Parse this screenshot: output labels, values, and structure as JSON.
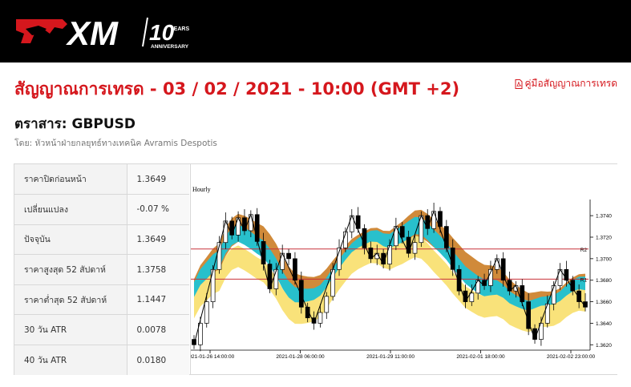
{
  "header": {
    "logo_text": "XM",
    "anniversary_number": "10",
    "anniversary_years": "YEARS",
    "anniversary_label": "ANNIVERSARY"
  },
  "page": {
    "title": "สัญญาณการเทรด - 03 / 02 / 2021 - 10:00 (GMT +2)",
    "guide_link": "คู่มือสัญญาณการเทรด",
    "instrument": "ตราสาร: GBPUSD",
    "author": "โดย: หัวหน้าฝ่ายกลยุทธ์ทางเทคนิค Avramis Despotis"
  },
  "stats": [
    {
      "label": "ราคาปิดก่อนหน้า",
      "value": "1.3649"
    },
    {
      "label": "เปลี่ยนแปลง",
      "value": "-0.07 %"
    },
    {
      "label": "ปัจจุบัน",
      "value": "1.3649"
    },
    {
      "label": "ราคาสูงสุด 52 สัปดาห์",
      "value": "1.3758"
    },
    {
      "label": "ราคาต่ำสุด 52 สัปดาห์",
      "value": "1.1447"
    },
    {
      "label": "30 วัน ATR",
      "value": "0.0078"
    },
    {
      "label": "40 วัน ATR",
      "value": "0.0180"
    }
  ],
  "colors": {
    "brand_red": "#d5171d",
    "band_brown": "#d08a3a",
    "band_cyan": "#28c0cc",
    "band_yellow": "#f9e27a",
    "level_line": "#c8323a"
  },
  "chart_data": {
    "type": "candlestick",
    "timeframe_label": "Hourly",
    "x_tick_labels": [
      "2021-01-26 14:00:00",
      "2021-01-28 06:00:00",
      "2021-01-29 11:00:00",
      "2021-02-01 18:00:00",
      "2021-02-02 23:00:00"
    ],
    "y_tick_labels": [
      "1.3740",
      "1.3720",
      "1.3700",
      "1.3680",
      "1.3660",
      "1.3640",
      "1.3620"
    ],
    "ylim": [
      1.3615,
      1.3755
    ],
    "levels": [
      {
        "name": "R2",
        "value": 1.3709
      },
      {
        "name": "R1",
        "value": 1.3681
      }
    ],
    "closes": [
      1.362,
      1.364,
      1.366,
      1.369,
      1.3715,
      1.3735,
      1.3722,
      1.3738,
      1.3726,
      1.3741,
      1.3716,
      1.3695,
      1.3672,
      1.369,
      1.3705,
      1.37,
      1.368,
      1.3655,
      1.3645,
      1.364,
      1.365,
      1.3665,
      1.369,
      1.371,
      1.3725,
      1.374,
      1.3728,
      1.371,
      1.37,
      1.3705,
      1.3695,
      1.3712,
      1.373,
      1.372,
      1.3705,
      1.3715,
      1.374,
      1.3728,
      1.3744,
      1.373,
      1.371,
      1.369,
      1.367,
      1.366,
      1.3668,
      1.368,
      1.3675,
      1.369,
      1.37,
      1.368,
      1.367,
      1.3675,
      1.366,
      1.3635,
      1.3625,
      1.364,
      1.3658,
      1.3675,
      1.369,
      1.368,
      1.367,
      1.366,
      1.3655
    ]
  }
}
